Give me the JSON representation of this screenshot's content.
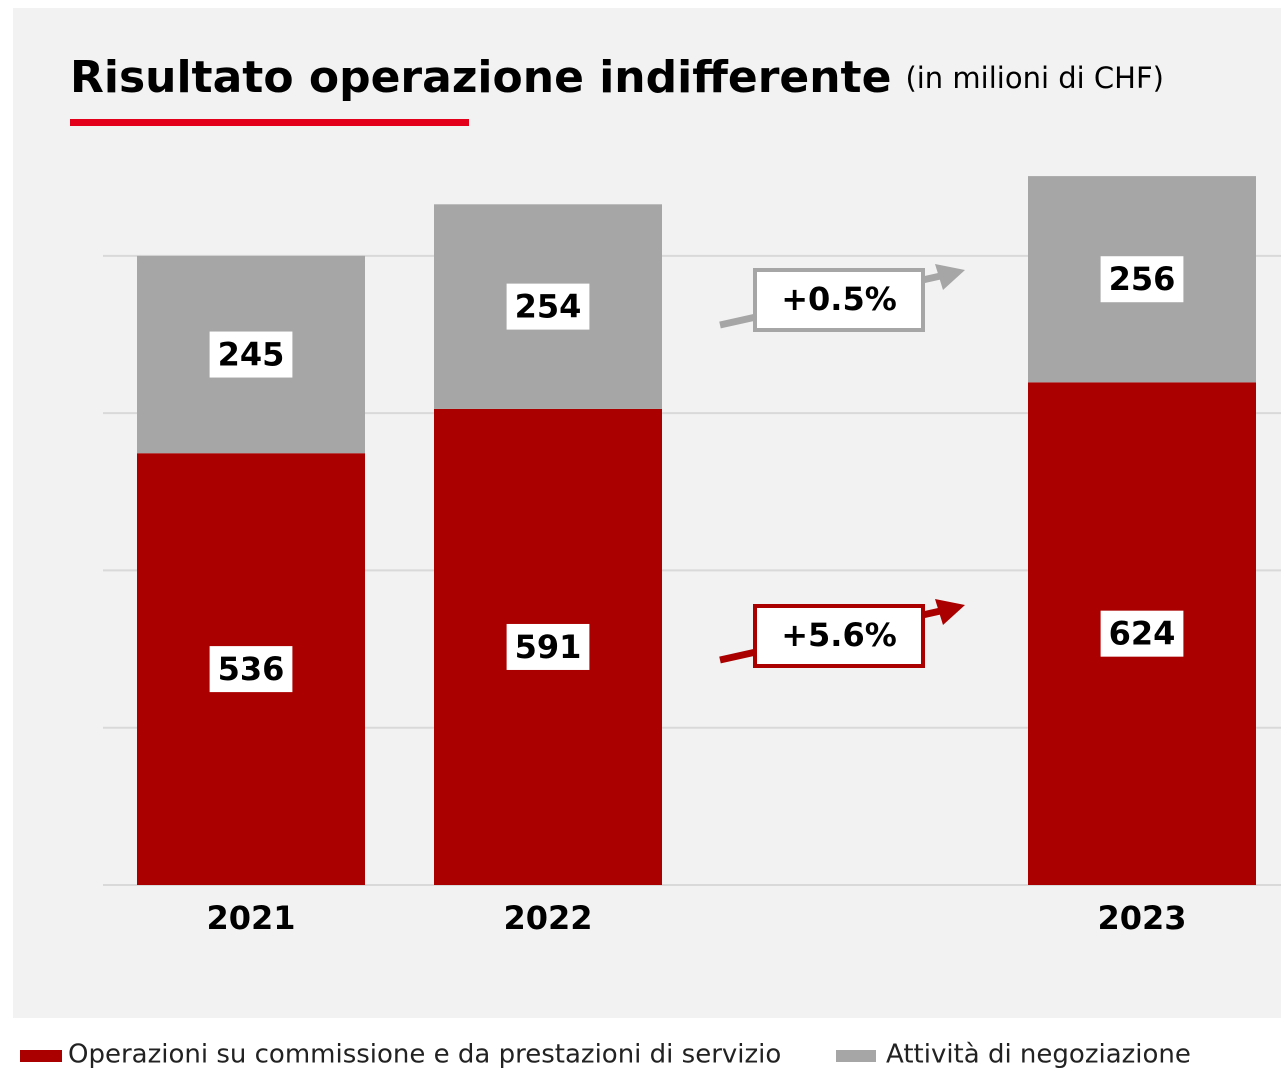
{
  "chart_data": {
    "type": "bar",
    "stacked": true,
    "title": "Risultato operazione indifferente",
    "subtitle": "(in milioni di CHF)",
    "categories": [
      "2021",
      "2022",
      "2023"
    ],
    "series": [
      {
        "name": "Operazioni su commissione e da prestazioni di servizio",
        "color": "#aa0000",
        "values": [
          536,
          591,
          624
        ]
      },
      {
        "name": "Attività di negoziazione",
        "color": "#a6a6a6",
        "values": [
          245,
          254,
          256
        ]
      }
    ],
    "ylim": [
      0,
      900
    ],
    "gridlines": [
      0,
      195.25,
      390.5,
      585.75,
      781
    ],
    "annotations": [
      {
        "text": "+0.5%",
        "color": "#a6a6a6"
      },
      {
        "text": "+5.6%",
        "color": "#aa0000"
      }
    ]
  }
}
